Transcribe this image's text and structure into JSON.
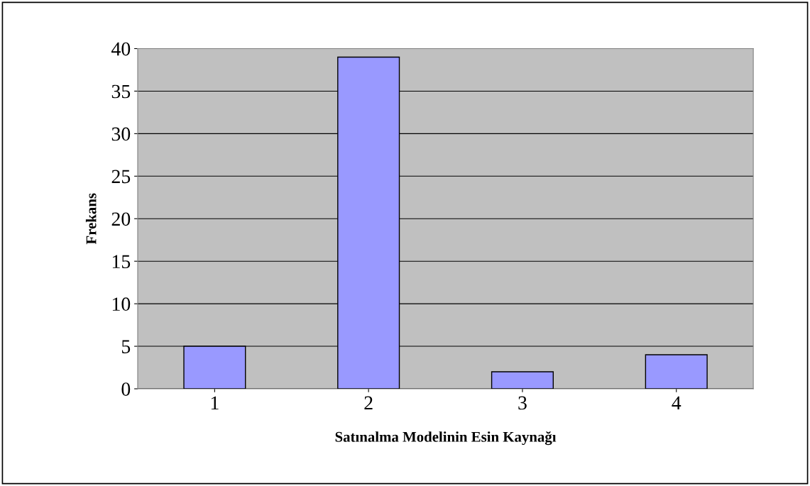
{
  "chart_data": {
    "type": "bar",
    "xlabel": "Satınalma Modelinin Esin Kaynağı",
    "ylabel": "Frekans",
    "categories": [
      "1",
      "2",
      "3",
      "4"
    ],
    "values": [
      5,
      39,
      2,
      4
    ],
    "color": "#9999ff",
    "ylim": [
      0,
      40
    ],
    "yticks": [
      0,
      5,
      10,
      15,
      20,
      25,
      30,
      35,
      40
    ],
    "grid": "y",
    "legend": false
  }
}
